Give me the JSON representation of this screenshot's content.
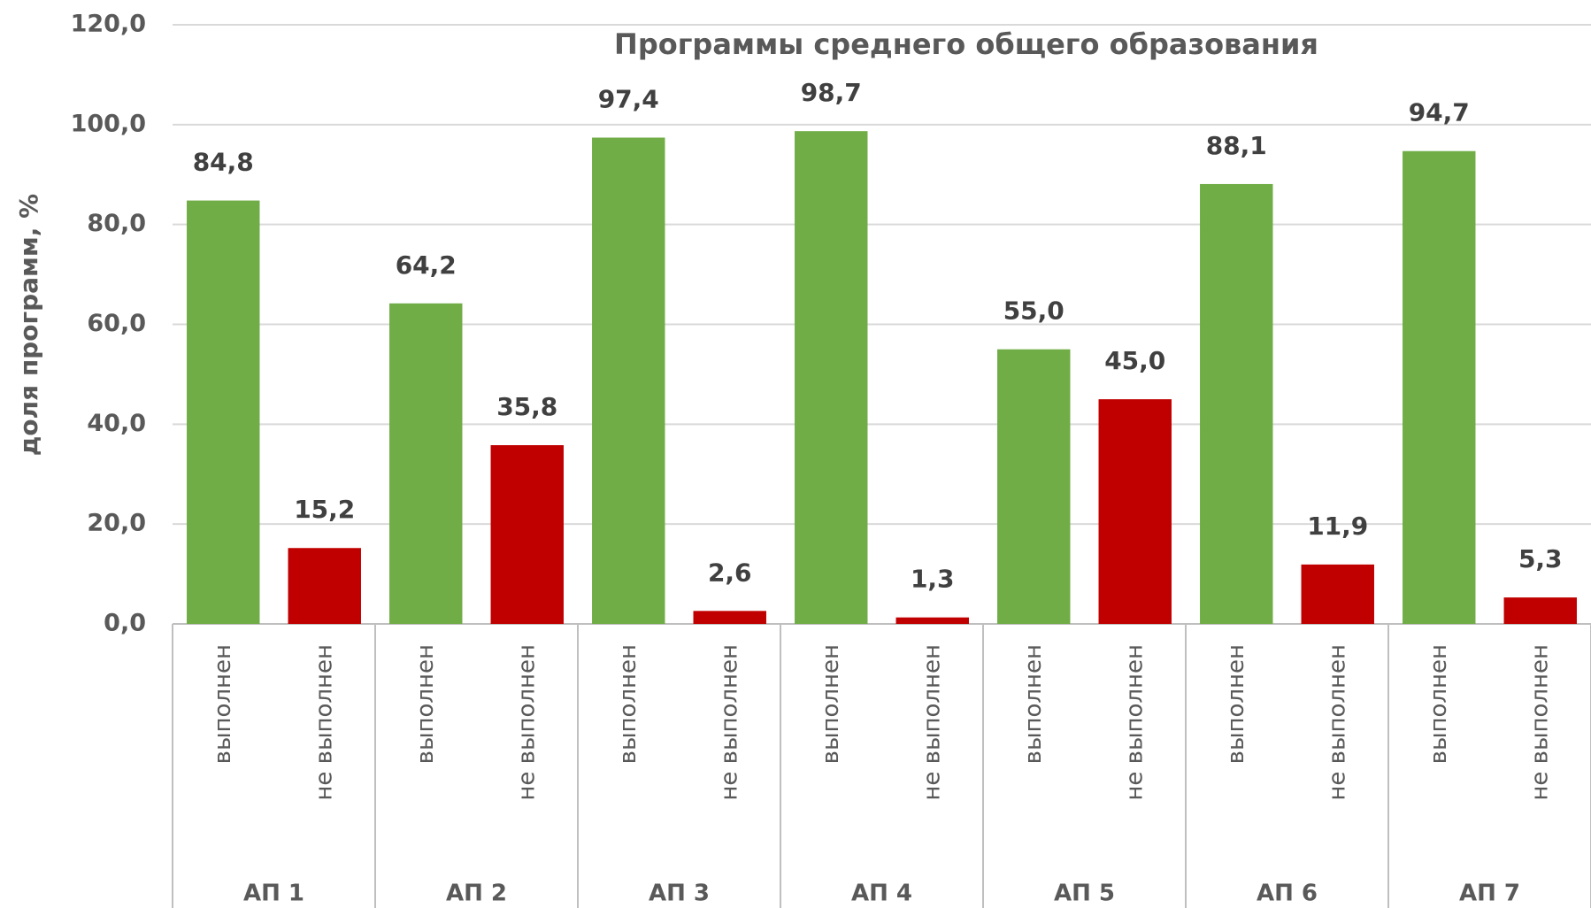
{
  "chart_data": {
    "type": "bar",
    "title": "Программы среднего общего образования",
    "y_label": "доля программ, %",
    "groups": [
      "АП 1",
      "АП 2",
      "АП 3",
      "АП 4",
      "АП 5",
      "АП 6",
      "АП 7"
    ],
    "categories": [
      "выполнен",
      "не выполнен",
      "выполнен",
      "не выполнен",
      "выполнен",
      "не выполнен",
      "выполнен",
      "не выполнен",
      "выполнен",
      "не выполнен",
      "выполнен",
      "не выполнен",
      "выполнен",
      "не выполнен"
    ],
    "values": [
      84.8,
      15.2,
      64.2,
      35.8,
      97.4,
      2.6,
      98.7,
      1.3,
      55.0,
      45.0,
      88.1,
      11.9,
      94.7,
      5.3
    ],
    "value_labels": [
      "84,8",
      "15,2",
      "64,2",
      "35,8",
      "97,4",
      "2,6",
      "98,7",
      "1,3",
      "55,0",
      "45,0",
      "88,1",
      "11,9",
      "94,7",
      "5,3"
    ],
    "colors": [
      "#70ad47",
      "#c00000",
      "#70ad47",
      "#c00000",
      "#70ad47",
      "#c00000",
      "#70ad47",
      "#c00000",
      "#70ad47",
      "#c00000",
      "#70ad47",
      "#c00000",
      "#70ad47",
      "#c00000"
    ],
    "ylim": [
      0,
      120
    ],
    "yticks": [
      {
        "value": 0,
        "label": "0,0"
      },
      {
        "value": 20,
        "label": "20,0"
      },
      {
        "value": 40,
        "label": "40,0"
      },
      {
        "value": 60,
        "label": "60,0"
      },
      {
        "value": 80,
        "label": "80,0"
      },
      {
        "value": 100,
        "label": "100,0"
      },
      {
        "value": 120,
        "label": "120,0"
      }
    ],
    "grid": true
  }
}
